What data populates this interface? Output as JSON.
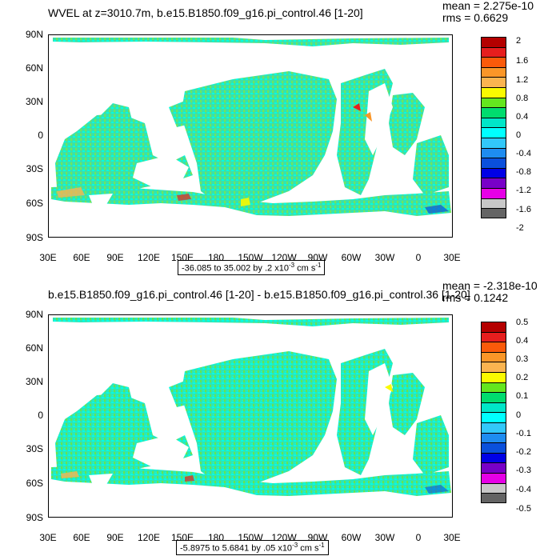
{
  "panels": [
    {
      "id": "top",
      "title": "WVEL at z=3010.7m, b.e15.B1850.f09_g16.pi_control.46 [1-20]",
      "mean": "mean = 2.275e-10",
      "rms": "rms = 0.6629",
      "range_text": "-36.085 to 35.002 by .2 x10",
      "range_exp": "-3",
      "range_units": " cm s",
      "range_units_exp": "-1",
      "colorbar_labels": [
        "2",
        "1.6",
        "1.2",
        "0.8",
        "0.4",
        "0",
        "-0.4",
        "-0.8",
        "-1.2",
        "-1.6",
        "-2"
      ]
    },
    {
      "id": "bottom",
      "title": "b.e15.B1850.f09_g16.pi_control.46 [1-20] - b.e15.B1850.f09_g16.pi_control.36 [1-20]",
      "mean": "mean = -2.318e-10",
      "rms": "rms = 0.1242",
      "range_text": "-5.8975 to 5.6841 by .05 x10",
      "range_exp": "-3",
      "range_units": " cm s",
      "range_units_exp": "-1",
      "colorbar_labels": [
        "0.5",
        "0.4",
        "0.3",
        "0.2",
        "0.1",
        "0",
        "-0.1",
        "-0.2",
        "-0.3",
        "-0.4",
        "-0.5"
      ]
    }
  ],
  "lat_ticks": [
    "90N",
    "60N",
    "30N",
    "0",
    "30S",
    "60S",
    "90S"
  ],
  "lon_ticks": [
    "30E",
    "60E",
    "90E",
    "120E",
    "150E",
    "180",
    "150W",
    "120W",
    "90W",
    "60W",
    "30W",
    "0",
    "30E"
  ],
  "colorbar_colors": [
    "#b40000",
    "#e61e1e",
    "#fa5a0a",
    "#fa9628",
    "#fab450",
    "#fafa00",
    "#64e61e",
    "#00dc6e",
    "#00e6c8",
    "#00ffff",
    "#32c8fa",
    "#1e8cf0",
    "#0a50dc",
    "#0000e6",
    "#7800c8",
    "#e600e6",
    "#c8c8c8",
    "#646464"
  ],
  "colors": {
    "ocean_base": "#32e6a0",
    "ocean_cyan": "#00ffe6",
    "ocean_green": "#64e650",
    "land": "#ffffff"
  }
}
